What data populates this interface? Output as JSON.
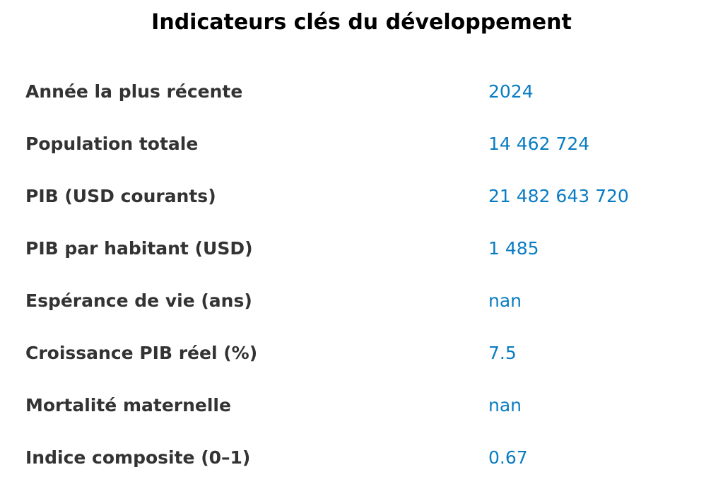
{
  "chart_data": {
    "type": "table",
    "title": "Indicateurs clés du développement",
    "rows": [
      {
        "label": "Année la plus récente",
        "value": "2024"
      },
      {
        "label": "Population totale",
        "value": "14 462 724"
      },
      {
        "label": "PIB (USD courants)",
        "value": "21 482 643 720"
      },
      {
        "label": "PIB par habitant (USD)",
        "value": "1 485"
      },
      {
        "label": "Espérance de vie (ans)",
        "value": "nan"
      },
      {
        "label": "Croissance PIB réel (%)",
        "value": "7.5"
      },
      {
        "label": "Mortalité maternelle",
        "value": "nan"
      },
      {
        "label": "Indice composite (0–1)",
        "value": "0.67"
      }
    ]
  },
  "colors": {
    "label": "#333333",
    "value": "#0a7cc2",
    "title": "#000000"
  }
}
